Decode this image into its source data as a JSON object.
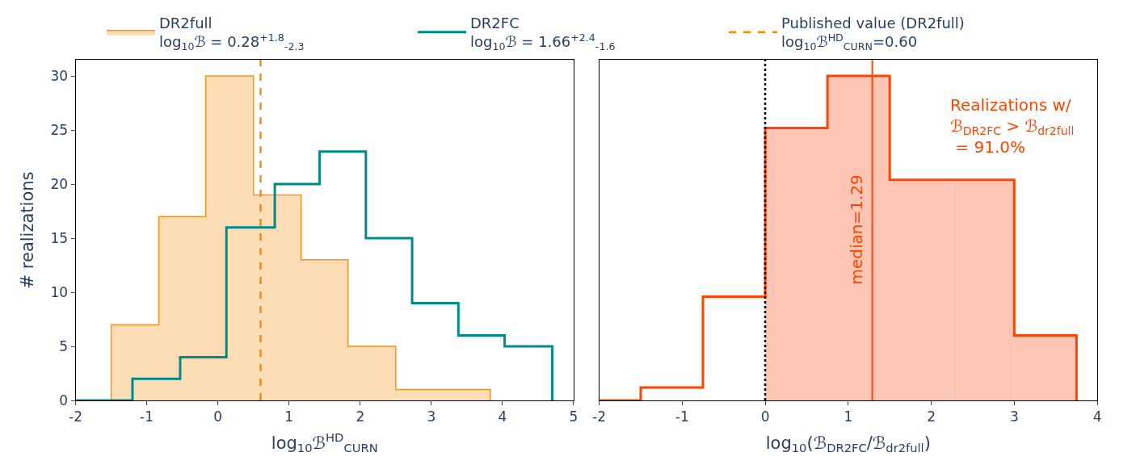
{
  "chart_data": [
    {
      "type": "step",
      "xlabel": "log$_{10}$ℬ$^{HD}$$_{CURN}$",
      "ylabel": "# realizations",
      "xlim": [
        -2,
        5
      ],
      "xticks": [
        -2,
        -1,
        0,
        1,
        2,
        3,
        4,
        5
      ],
      "ylim": [
        0,
        31.5
      ],
      "yticks": [
        0,
        5,
        10,
        15,
        20,
        25,
        30
      ],
      "legend": "top",
      "series": [
        {
          "type": "area",
          "name": "DR2full\nlog$_{10}$ℬ = 0.28$^{+1.8}$$_{-2.3}$",
          "color": "#f7941d",
          "x": [
            -1.5,
            -0.83,
            -0.17,
            0.5,
            1.17,
            1.83,
            2.5,
            3.17,
            3.83
          ],
          "values": [
            7,
            17,
            30,
            19,
            13,
            5,
            1,
            1,
            0
          ]
        },
        {
          "name": "DR2FC\nlog$_{10}$ℬ = 1.66$^{+2.4}$$_{-1.6}$",
          "color": "#008b8b",
          "x": [
            -2,
            -1.2,
            -0.53,
            0.12,
            0.8,
            1.43,
            2.08,
            2.73,
            3.38,
            4.03,
            4.7
          ],
          "values": [
            0,
            2,
            4,
            16,
            20,
            23,
            15,
            9,
            6,
            5,
            0
          ]
        }
      ],
      "ref_lines": [
        {
          "axis": "x",
          "value": 0.6,
          "label": "Published value (DR2full)\nlog$_{10}$ℬ$^{HD}$$_{CURN}$=0.60",
          "color": "#ff8c00",
          "line_style": "dashed"
        }
      ]
    },
    {
      "type": "histogram",
      "xlabel": "log$_{10}$(ℬ$_{DR2FC}$/ℬ$_{dr2full}$)",
      "xlim": [
        -2,
        4
      ],
      "xticks": [
        -2,
        -1,
        0,
        1,
        2,
        3,
        4
      ],
      "ylim": [
        0,
        31.5
      ],
      "tick_labels": "x",
      "bins": [
        -1.5,
        -0.75,
        0,
        0.75,
        1.5,
        2.25,
        3,
        3.75
      ],
      "series": [
        {
          "color": "#fcc5b4",
          "values": [
            null,
            null,
            25.2,
            30,
            20.4,
            20.4,
            6
          ]
        },
        {
          "type": "step",
          "color": "#ff4500",
          "x": [
            -2,
            -1.5,
            -0.75,
            0,
            0.75,
            1.5,
            2.25,
            3,
            3.75
          ],
          "values": [
            0,
            1.2,
            9.6,
            25.2,
            30,
            20.4,
            20.4,
            6,
            0
          ]
        }
      ],
      "ref_lines": [
        {
          "axis": "x",
          "value": 0,
          "color": "#000000",
          "line_style": "dotted"
        },
        {
          "axis": "x",
          "value": 1.29,
          "label": "median=1.29",
          "color": "#ff4500",
          "line_style": "solid"
        }
      ],
      "annotations": [
        "Realizations w/\nℬ$_{DR2FC}$ > ℬ$_{dr2full}$\n = 91.0%"
      ]
    }
  ]
}
